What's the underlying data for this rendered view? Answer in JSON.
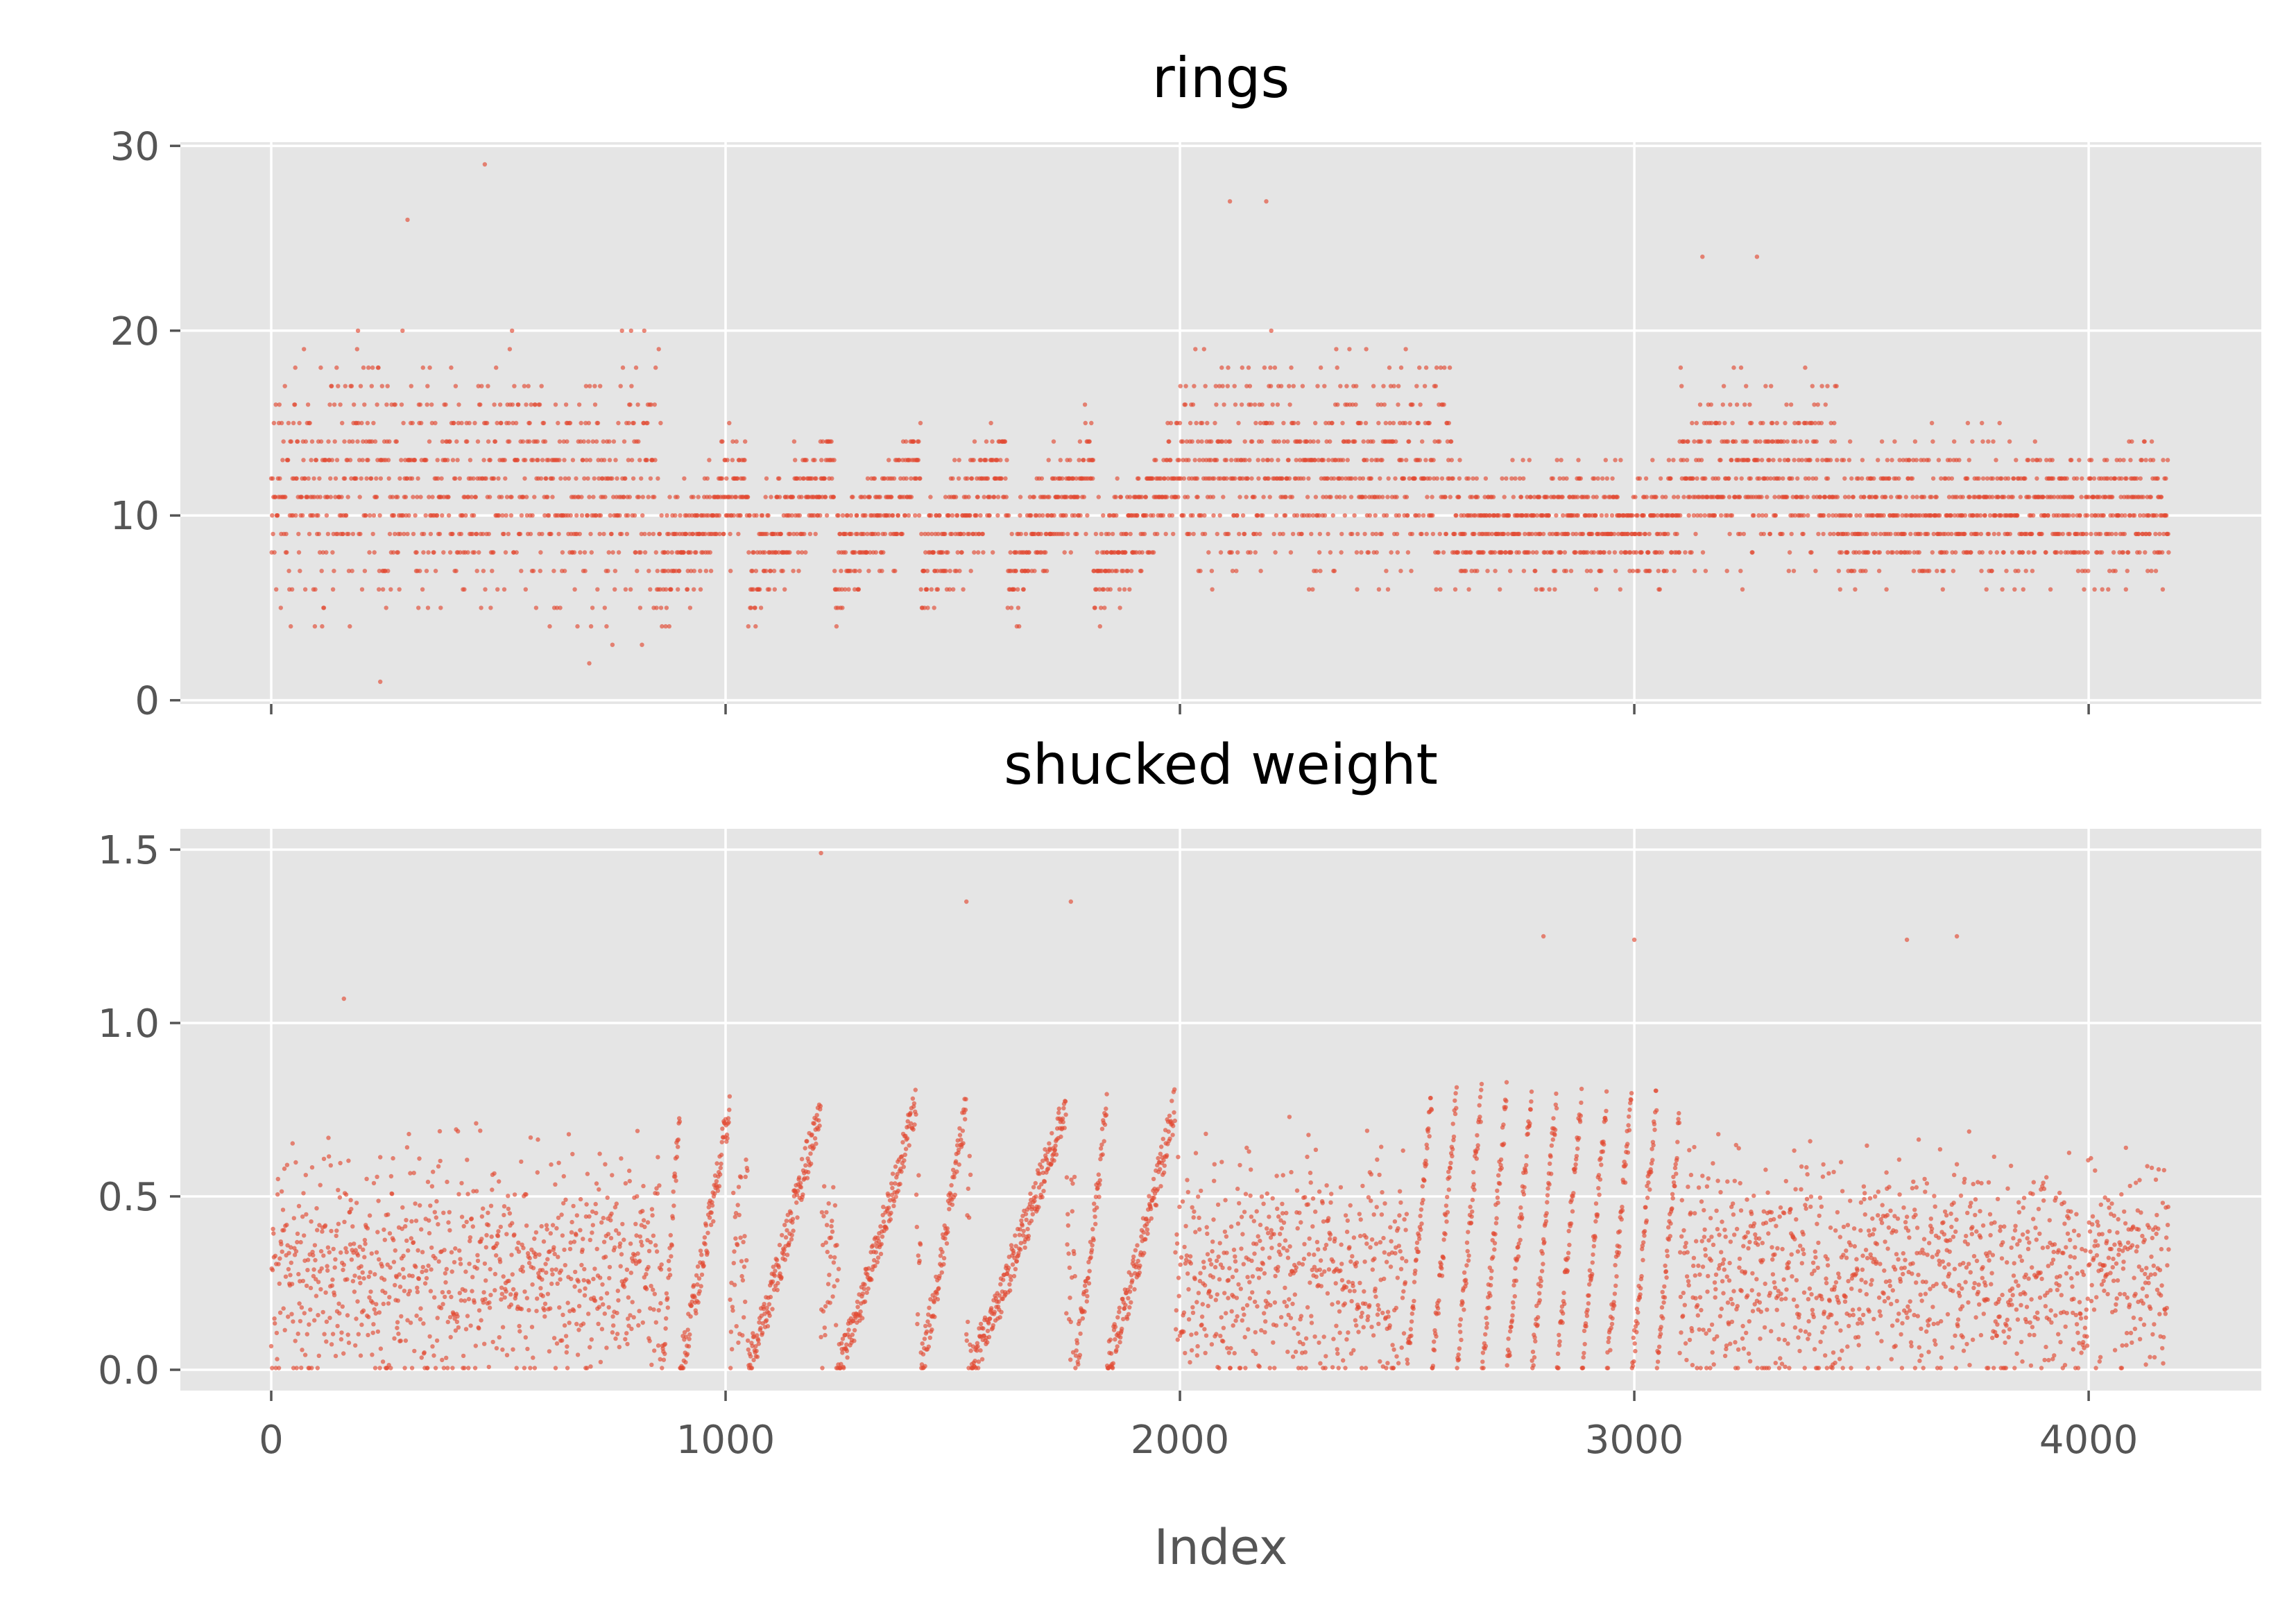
{
  "chart_data": [
    {
      "type": "scatter",
      "title": "rings",
      "xlabel": "",
      "ylabel": "",
      "xlim": [
        -200,
        4380
      ],
      "ylim": [
        -0.2,
        30.2
      ],
      "xticks": [
        0,
        1000,
        2000,
        3000,
        4000
      ],
      "yticks": [
        0,
        10,
        20,
        30
      ],
      "xtick_labels": [
        "",
        "",
        "",
        "",
        ""
      ],
      "ytick_labels": [
        "0",
        "10",
        "20",
        "30"
      ],
      "grid": true,
      "point_color": "#e24a33",
      "n_points": 4177,
      "x": [
        0,
        4176
      ],
      "notable_points": [
        [
          240,
          1
        ],
        [
          470,
          29
        ],
        [
          300,
          26
        ],
        [
          2110,
          27
        ],
        [
          2190,
          27
        ],
        [
          3150,
          24
        ],
        [
          3270,
          24
        ],
        [
          700,
          2
        ]
      ],
      "segment_levels": [
        {
          "range": [
            0,
            860
          ],
          "center": 11.5,
          "spread": 5.5
        },
        {
          "range": [
            860,
            2000
          ],
          "center": 9.5,
          "spread": 2.5
        },
        {
          "range": [
            2000,
            2600
          ],
          "center": 12.5,
          "spread": 4.5
        },
        {
          "range": [
            2600,
            3100
          ],
          "center": 9.5,
          "spread": 2.5
        },
        {
          "range": [
            3100,
            3450
          ],
          "center": 12.0,
          "spread": 4.0
        },
        {
          "range": [
            3450,
            4177
          ],
          "center": 10.0,
          "spread": 3.0
        }
      ]
    },
    {
      "type": "scatter",
      "title": "shucked weight",
      "xlabel": "Index",
      "ylabel": "",
      "xlim": [
        -200,
        4380
      ],
      "ylim": [
        -0.06,
        1.56
      ],
      "xticks": [
        0,
        1000,
        2000,
        3000,
        4000
      ],
      "yticks": [
        0.0,
        0.5,
        1.0,
        1.5
      ],
      "xtick_labels": [
        "0",
        "1000",
        "2000",
        "3000",
        "4000"
      ],
      "ytick_labels": [
        "0.0",
        "0.5",
        "1.0",
        "1.5"
      ],
      "grid": true,
      "point_color": "#e24a33",
      "n_points": 4177,
      "x": [
        0,
        4176
      ],
      "notable_points": [
        [
          1210,
          1.49
        ],
        [
          1530,
          1.35
        ],
        [
          1760,
          1.35
        ],
        [
          2800,
          1.25
        ],
        [
          3000,
          1.24
        ],
        [
          3600,
          1.24
        ],
        [
          3710,
          1.25
        ],
        [
          160,
          1.07
        ]
      ],
      "sorted_runs": [
        [
          860,
          900
        ],
        [
          900,
          1010
        ],
        [
          1050,
          1210
        ],
        [
          1250,
          1420
        ],
        [
          1430,
          1530
        ],
        [
          1540,
          1750
        ],
        [
          1770,
          1840
        ],
        [
          1840,
          1990
        ]
      ]
    }
  ]
}
